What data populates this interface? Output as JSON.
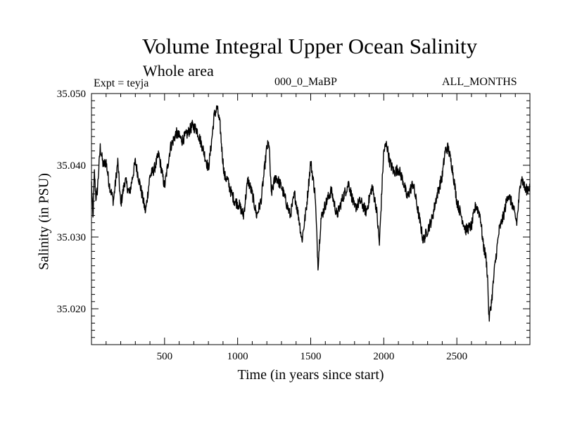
{
  "chart_data": {
    "type": "line",
    "title": "Volume Integral Upper Ocean Salinity",
    "subtitle": "Whole area",
    "annotations": {
      "experiment": "Expt = teyja",
      "period": "000_0_MaBP",
      "months": "ALL_MONTHS"
    },
    "xlabel": "Time (in years since start)",
    "ylabel": "Salinity (in PSU)",
    "xlim": [
      0,
      3000
    ],
    "ylim": [
      35.015,
      35.05
    ],
    "x_ticks": [
      500,
      1000,
      1500,
      2000,
      2500
    ],
    "y_ticks": [
      35.02,
      35.03,
      35.04,
      35.05
    ],
    "x_tick_labels": [
      "500",
      "1000",
      "1500",
      "2000",
      "2500"
    ],
    "y_tick_labels": [
      "35.020",
      "35.030",
      "35.040",
      "35.050"
    ],
    "grid": false,
    "series": [
      {
        "name": "salinity",
        "x": [
          0,
          10,
          20,
          30,
          40,
          60,
          80,
          100,
          120,
          150,
          180,
          200,
          230,
          260,
          300,
          340,
          370,
          400,
          430,
          460,
          500,
          540,
          580,
          620,
          660,
          690,
          720,
          760,
          800,
          820,
          840,
          860,
          880,
          895,
          910,
          930,
          950,
          980,
          1010,
          1040,
          1070,
          1100,
          1130,
          1160,
          1200,
          1215,
          1230,
          1260,
          1300,
          1330,
          1360,
          1390,
          1420,
          1440,
          1470,
          1500,
          1530,
          1550,
          1570,
          1600,
          1640,
          1680,
          1720,
          1760,
          1800,
          1840,
          1880,
          1920,
          1950,
          1970,
          1990,
          2000,
          2020,
          2040,
          2070,
          2100,
          2130,
          2160,
          2200,
          2240,
          2270,
          2300,
          2330,
          2360,
          2400,
          2420,
          2440,
          2470,
          2500,
          2530,
          2560,
          2600,
          2630,
          2660,
          2680,
          2700,
          2710,
          2720,
          2740,
          2760,
          2790,
          2820,
          2850,
          2880,
          2910,
          2940,
          2970,
          3000
        ],
        "y": [
          35.0375,
          35.0325,
          35.039,
          35.0355,
          35.0365,
          35.0425,
          35.04,
          35.0405,
          35.0375,
          35.035,
          35.0405,
          35.0345,
          35.038,
          35.036,
          35.0405,
          35.0365,
          35.0335,
          35.0385,
          35.0395,
          35.0415,
          35.037,
          35.0425,
          35.0445,
          35.0435,
          35.0445,
          35.0455,
          35.045,
          35.0425,
          35.0395,
          35.043,
          35.047,
          35.048,
          35.0455,
          35.0415,
          35.0385,
          35.038,
          35.0365,
          35.035,
          35.0345,
          35.033,
          35.038,
          35.036,
          35.033,
          35.035,
          35.0425,
          35.043,
          35.036,
          35.0385,
          35.037,
          35.035,
          35.033,
          35.036,
          35.0325,
          35.0295,
          35.034,
          35.0405,
          35.036,
          35.026,
          35.0325,
          35.0345,
          35.0365,
          35.033,
          35.0355,
          35.0375,
          35.034,
          35.035,
          35.0335,
          35.037,
          35.034,
          35.029,
          35.038,
          35.042,
          35.043,
          35.0405,
          35.039,
          35.0395,
          35.038,
          35.0355,
          35.0375,
          35.033,
          35.0295,
          35.031,
          35.0325,
          35.0355,
          35.0385,
          35.042,
          35.0425,
          35.0395,
          35.035,
          35.033,
          35.031,
          35.0315,
          35.0345,
          35.033,
          35.029,
          35.027,
          35.0245,
          35.0185,
          35.0215,
          35.026,
          35.031,
          35.033,
          35.036,
          35.0345,
          35.032,
          35.0385,
          35.0365,
          35.037
        ]
      }
    ]
  }
}
